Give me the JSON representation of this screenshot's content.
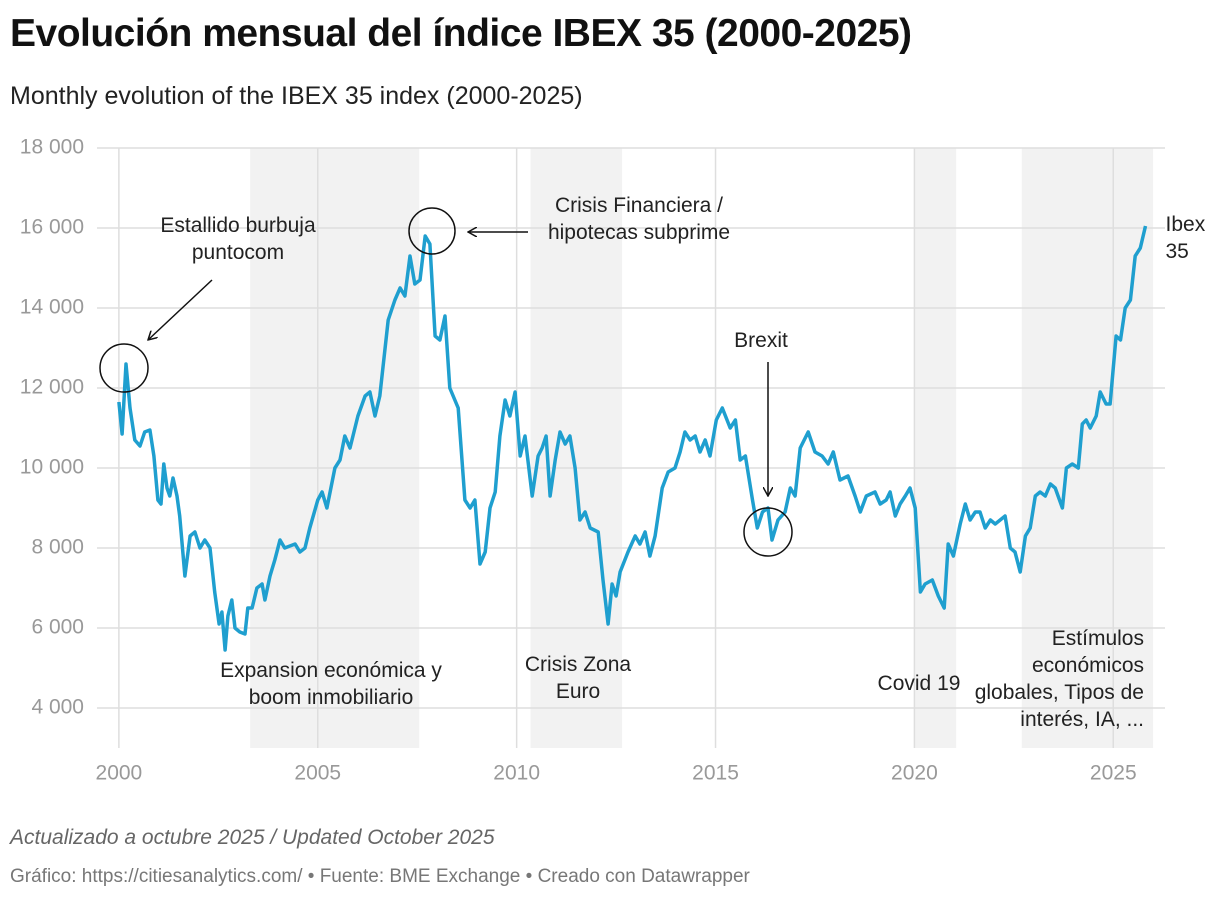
{
  "chart_data": {
    "type": "line",
    "title": "Evolución mensual del índice IBEX 35 (2000-2025)",
    "subtitle": "Monthly evolution of the IBEX 35 index (2000-2025)",
    "note": "Actualizado a octubre 2025 / Updated October 2025",
    "source": "Gráfico: https://citiesanalytics.com/ • Fuente: BME Exchange • Creado con Datawrapper",
    "xlim": [
      1999.45,
      2026.3
    ],
    "xticks": [
      2000,
      2005,
      2010,
      2015,
      2020,
      2025
    ],
    "ylim": [
      3000,
      18000
    ],
    "yticks": [
      {
        "value": 4000,
        "label": "4 000"
      },
      {
        "value": 6000,
        "label": "6 000"
      },
      {
        "value": 8000,
        "label": "8 000"
      },
      {
        "value": 10000,
        "label": "10 000"
      },
      {
        "value": 12000,
        "label": "12 000"
      },
      {
        "value": 14000,
        "label": "14 000"
      },
      {
        "value": 16000,
        "label": "16 000"
      },
      {
        "value": 18000,
        "label": "18 000"
      }
    ],
    "grid": true,
    "shaded_periods": [
      [
        2003.3,
        2007.55
      ],
      [
        2010.35,
        2012.65
      ],
      [
        2020.0,
        2021.05
      ],
      [
        2022.7,
        2026.0
      ]
    ],
    "annotations": [
      "Estallido burbuja puntocom",
      "Expansion económica y boom inmobiliario",
      "Crisis Financiera / hipotecas subprime",
      "Crisis Zona Euro",
      "Brexit",
      "Covid 19",
      "Estímulos económicos globales, Tipos de interés, IA, ..."
    ],
    "x": [
      2000.0,
      2000.08,
      2000.18,
      2000.28,
      2000.4,
      2000.53,
      2000.65,
      2000.78,
      2000.88,
      2000.98,
      2001.06,
      2001.13,
      2001.21,
      2001.28,
      2001.36,
      2001.46,
      2001.53,
      2001.66,
      2001.79,
      2001.91,
      2002.04,
      2002.16,
      2002.29,
      2002.41,
      2002.52,
      2002.59,
      2002.67,
      2002.74,
      2002.84,
      2002.92,
      2003.04,
      2003.17,
      2003.24,
      2003.35,
      2003.47,
      2003.6,
      2003.67,
      2003.8,
      2003.92,
      2004.05,
      2004.17,
      2004.43,
      2004.55,
      2004.68,
      2004.8,
      2005.0,
      2005.11,
      2005.23,
      2005.43,
      2005.56,
      2005.68,
      2005.81,
      2006.01,
      2006.19,
      2006.31,
      2006.44,
      2006.56,
      2006.77,
      2006.94,
      2007.07,
      2007.19,
      2007.32,
      2007.44,
      2007.57,
      2007.7,
      2007.82,
      2007.95,
      2008.07,
      2008.2,
      2008.32,
      2008.53,
      2008.7,
      2008.83,
      2008.95,
      2009.08,
      2009.21,
      2009.33,
      2009.46,
      2009.58,
      2009.71,
      2009.83,
      2009.96,
      2010.09,
      2010.21,
      2010.39,
      2010.54,
      2010.64,
      2010.74,
      2010.84,
      2010.97,
      2011.09,
      2011.22,
      2011.34,
      2011.47,
      2011.59,
      2011.72,
      2011.85,
      2012.05,
      2012.17,
      2012.3,
      2012.4,
      2012.5,
      2012.6,
      2012.8,
      2012.98,
      2013.1,
      2013.23,
      2013.35,
      2013.48,
      2013.66,
      2013.81,
      2013.98,
      2014.11,
      2014.23,
      2014.36,
      2014.49,
      2014.61,
      2014.74,
      2014.86,
      2015.02,
      2015.17,
      2015.37,
      2015.5,
      2015.62,
      2015.75,
      2015.93,
      2016.05,
      2016.18,
      2016.32,
      2016.42,
      2016.57,
      2016.75,
      2016.88,
      2017.0,
      2017.13,
      2017.33,
      2017.5,
      2017.68,
      2017.83,
      2017.96,
      2018.13,
      2018.33,
      2018.51,
      2018.64,
      2018.79,
      2019.01,
      2019.14,
      2019.29,
      2019.39,
      2019.52,
      2019.64,
      2019.77,
      2019.89,
      2020.02,
      2020.15,
      2020.27,
      2020.45,
      2020.6,
      2020.75,
      2020.85,
      2020.98,
      2021.15,
      2021.28,
      2021.4,
      2021.53,
      2021.65,
      2021.78,
      2021.91,
      2022.03,
      2022.28,
      2022.41,
      2022.53,
      2022.66,
      2022.79,
      2022.91,
      2023.04,
      2023.16,
      2023.29,
      2023.42,
      2023.54,
      2023.72,
      2023.82,
      2023.97,
      2024.12,
      2024.22,
      2024.32,
      2024.42,
      2024.57,
      2024.67,
      2024.82,
      2024.92,
      2025.07,
      2025.18,
      2025.3,
      2025.43,
      2025.55,
      2025.68,
      2025.81
    ],
    "series": [
      {
        "name": "Ibex 35",
        "color": "#1f9fcf",
        "values": [
          11650,
          10850,
          12600,
          11500,
          10700,
          10550,
          10900,
          10950,
          10300,
          9200,
          9100,
          10100,
          9500,
          9300,
          9750,
          9300,
          8800,
          7300,
          8300,
          8400,
          8000,
          8200,
          8000,
          6900,
          6100,
          6400,
          5450,
          6300,
          6700,
          6000,
          5900,
          5850,
          6500,
          6500,
          7000,
          7100,
          6700,
          7300,
          7700,
          8200,
          8000,
          8100,
          7900,
          8000,
          8500,
          9200,
          9400,
          9000,
          10000,
          10200,
          10800,
          10500,
          11300,
          11800,
          11900,
          11300,
          11800,
          13700,
          14200,
          14500,
          14300,
          15300,
          14600,
          14700,
          15800,
          15600,
          13300,
          13200,
          13800,
          12000,
          11500,
          9200,
          9000,
          9200,
          7600,
          7900,
          9000,
          9400,
          10800,
          11700,
          11300,
          11900,
          10300,
          10800,
          9300,
          10300,
          10500,
          10800,
          9300,
          10200,
          10900,
          10600,
          10800,
          10000,
          8700,
          8900,
          8500,
          8400,
          7200,
          6100,
          7100,
          6800,
          7400,
          7900,
          8300,
          8100,
          8400,
          7800,
          8300,
          9500,
          9900,
          10000,
          10400,
          10900,
          10700,
          10800,
          10400,
          10700,
          10300,
          11200,
          11500,
          11000,
          11200,
          10200,
          10300,
          9200,
          8500,
          8900,
          9000,
          8200,
          8700,
          8900,
          9500,
          9300,
          10500,
          10900,
          10400,
          10300,
          10100,
          10400,
          9700,
          9800,
          9300,
          8900,
          9300,
          9400,
          9100,
          9200,
          9400,
          8800,
          9100,
          9300,
          9500,
          9000,
          6900,
          7100,
          7200,
          6800,
          6500,
          8100,
          7800,
          8600,
          9100,
          8700,
          8900,
          8900,
          8500,
          8700,
          8600,
          8800,
          8000,
          7900,
          7400,
          8300,
          8500,
          9300,
          9400,
          9300,
          9600,
          9500,
          9000,
          10000,
          10100,
          10000,
          11100,
          11200,
          11000,
          11300,
          11900,
          11600,
          11600,
          13300,
          13200,
          14000,
          14200,
          15300,
          15500,
          16050
        ]
      }
    ]
  }
}
